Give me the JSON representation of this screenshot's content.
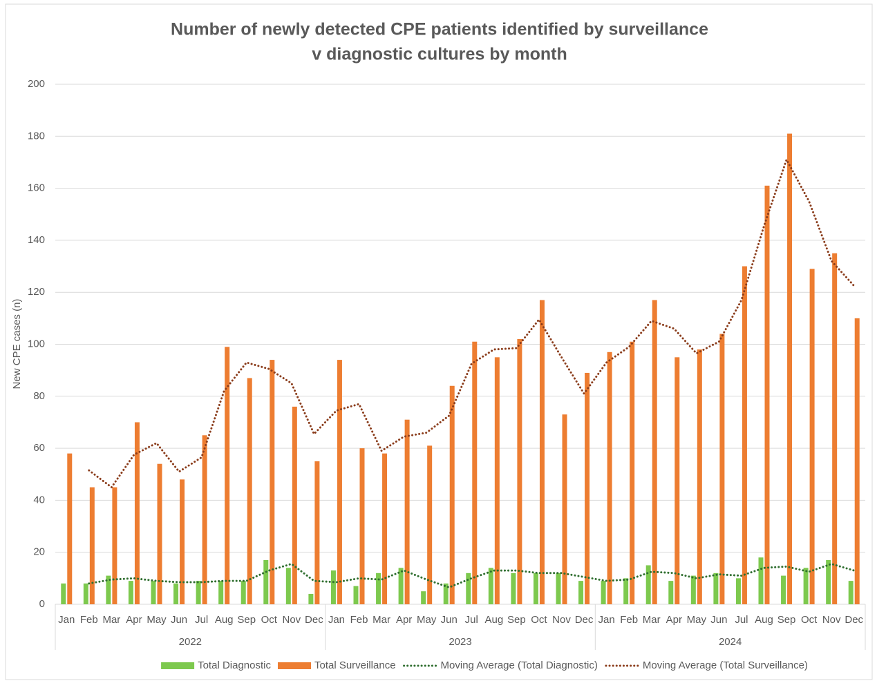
{
  "chart_data": {
    "type": "bar",
    "title": [
      "Number of newly detected CPE patients identified by surveillance",
      "v diagnostic cultures by month"
    ],
    "y_label": "New CPE cases (n)",
    "categories": [
      "Jan",
      "Feb",
      "Mar",
      "Apr",
      "May",
      "Jun",
      "Jul",
      "Aug",
      "Sep",
      "Oct",
      "Nov",
      "Dec",
      "Jan",
      "Feb",
      "Mar",
      "Apr",
      "May",
      "Jun",
      "Jul",
      "Aug",
      "Sep",
      "Oct",
      "Nov",
      "Dec",
      "Jan",
      "Feb",
      "Mar",
      "Apr",
      "May",
      "Jun",
      "Jul",
      "Aug",
      "Sep",
      "Oct",
      "Nov",
      "Dec"
    ],
    "x_groups": [
      "2022",
      "2023",
      "2024"
    ],
    "ylim": [
      0,
      200
    ],
    "yticks": [
      0,
      20,
      40,
      60,
      80,
      100,
      120,
      140,
      160,
      180,
      200
    ],
    "grid": true,
    "legend": "bottom",
    "series": [
      {
        "name": "Total Diagnostic",
        "kind": "bar",
        "color": "#7dc94e",
        "values": [
          8,
          8,
          11,
          9,
          9,
          8,
          9,
          9,
          9,
          17,
          14,
          4,
          13,
          7,
          12,
          14,
          5,
          8,
          12,
          14,
          12,
          12,
          12,
          9,
          9,
          10,
          15,
          9,
          11,
          12,
          10,
          18,
          11,
          14,
          17,
          9
        ]
      },
      {
        "name": "Total Surveillance",
        "kind": "bar",
        "color": "#ed7d31",
        "values": [
          58,
          45,
          45,
          70,
          54,
          48,
          65,
          99,
          87,
          94,
          76,
          55,
          94,
          60,
          58,
          71,
          61,
          84,
          101,
          95,
          102,
          117,
          73,
          89,
          97,
          101,
          117,
          95,
          98,
          104,
          130,
          161,
          181,
          129,
          135,
          110
        ]
      },
      {
        "name": "Moving Average (Total Diagnostic)",
        "kind": "line",
        "color": "#2f6e2f",
        "values": [
          null,
          8,
          9.5,
          10,
          9,
          8.5,
          8.5,
          9,
          9,
          13,
          15.5,
          9,
          8.5,
          10,
          9.5,
          13,
          9.5,
          6.5,
          10,
          13,
          13,
          12,
          12,
          10.5,
          9,
          9.5,
          12.5,
          12,
          10,
          11.5,
          11,
          14,
          14.5,
          12.5,
          15.5,
          13
        ]
      },
      {
        "name": "Moving Average (Total Surveillance)",
        "kind": "line",
        "color": "#8b3d1c",
        "values": [
          null,
          51.5,
          45,
          57.5,
          62,
          51,
          56.5,
          82,
          93,
          90.5,
          85,
          65.5,
          74.5,
          77,
          59,
          64.5,
          66,
          72.5,
          92.5,
          98,
          98.5,
          109.5,
          95,
          81,
          93,
          99,
          109,
          106,
          96.5,
          101,
          117,
          145.5,
          171,
          155,
          132,
          122.5
        ]
      }
    ]
  }
}
